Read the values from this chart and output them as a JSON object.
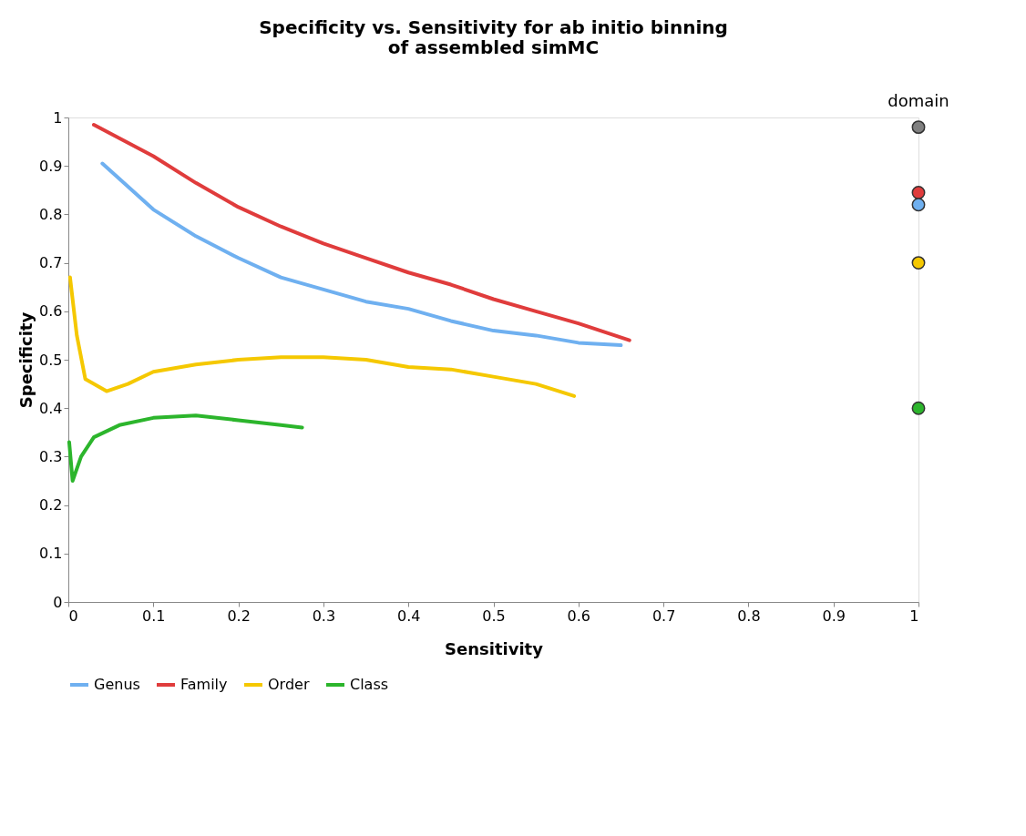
{
  "chart_data": {
    "type": "line",
    "title": [
      "Specificity vs. Sensitivity for ab initio binning",
      "of assembled simMC"
    ],
    "xlabel": "Sensitivity",
    "ylabel": "Specificity",
    "xlim": [
      0,
      1
    ],
    "ylim": [
      0,
      1
    ],
    "xticks": [
      0,
      0.1,
      0.2,
      0.3,
      0.4,
      0.5,
      0.6,
      0.7,
      0.8,
      0.9,
      1
    ],
    "yticks": [
      0,
      0.1,
      0.2,
      0.3,
      0.4,
      0.5,
      0.6,
      0.7,
      0.8,
      0.9,
      1
    ],
    "grid": false,
    "legend": "bottom",
    "marker": "none",
    "line_style": "solid",
    "annotations": [
      {
        "text": "domain",
        "x": 1,
        "y": 0.98
      }
    ],
    "series": [
      {
        "name": "Genus",
        "color": "#6fb0f0",
        "x": [
          0.04,
          0.1,
          0.15,
          0.2,
          0.25,
          0.3,
          0.35,
          0.4,
          0.45,
          0.5,
          0.55,
          0.6,
          0.65
        ],
        "values": [
          0.905,
          0.81,
          0.755,
          0.71,
          0.67,
          0.645,
          0.62,
          0.605,
          0.58,
          0.56,
          0.55,
          0.535,
          0.53
        ]
      },
      {
        "name": "Family",
        "color": "#e03c3c",
        "x": [
          0.03,
          0.1,
          0.15,
          0.2,
          0.25,
          0.3,
          0.35,
          0.4,
          0.45,
          0.5,
          0.55,
          0.6,
          0.66
        ],
        "values": [
          0.985,
          0.92,
          0.865,
          0.815,
          0.775,
          0.74,
          0.71,
          0.68,
          0.655,
          0.625,
          0.6,
          0.575,
          0.54
        ]
      },
      {
        "name": "Order",
        "color": "#f5c800",
        "x": [
          0.002,
          0.01,
          0.02,
          0.045,
          0.07,
          0.1,
          0.15,
          0.2,
          0.25,
          0.3,
          0.35,
          0.4,
          0.45,
          0.5,
          0.55,
          0.595
        ],
        "values": [
          0.67,
          0.55,
          0.46,
          0.435,
          0.45,
          0.475,
          0.49,
          0.5,
          0.505,
          0.505,
          0.5,
          0.485,
          0.48,
          0.465,
          0.45,
          0.425
        ]
      },
      {
        "name": "Class",
        "color": "#2cb52c",
        "x": [
          0.001,
          0.005,
          0.015,
          0.03,
          0.06,
          0.1,
          0.15,
          0.2,
          0.25,
          0.275
        ],
        "values": [
          0.33,
          0.25,
          0.3,
          0.34,
          0.365,
          0.38,
          0.385,
          0.375,
          0.365,
          0.36
        ]
      },
      {
        "color": "#808080",
        "type": "scatter",
        "marker": "circle",
        "x": [
          1
        ],
        "values": [
          0.98
        ]
      },
      {
        "color": "#e03c3c",
        "type": "scatter",
        "marker": "circle",
        "x": [
          1
        ],
        "values": [
          0.845
        ]
      },
      {
        "color": "#6fb0f0",
        "type": "scatter",
        "marker": "circle",
        "x": [
          1
        ],
        "values": [
          0.82
        ]
      },
      {
        "color": "#f5c800",
        "type": "scatter",
        "marker": "circle",
        "x": [
          1
        ],
        "values": [
          0.7
        ]
      },
      {
        "color": "#2cb52c",
        "type": "scatter",
        "marker": "circle",
        "x": [
          1
        ],
        "values": [
          0.4
        ]
      }
    ]
  }
}
